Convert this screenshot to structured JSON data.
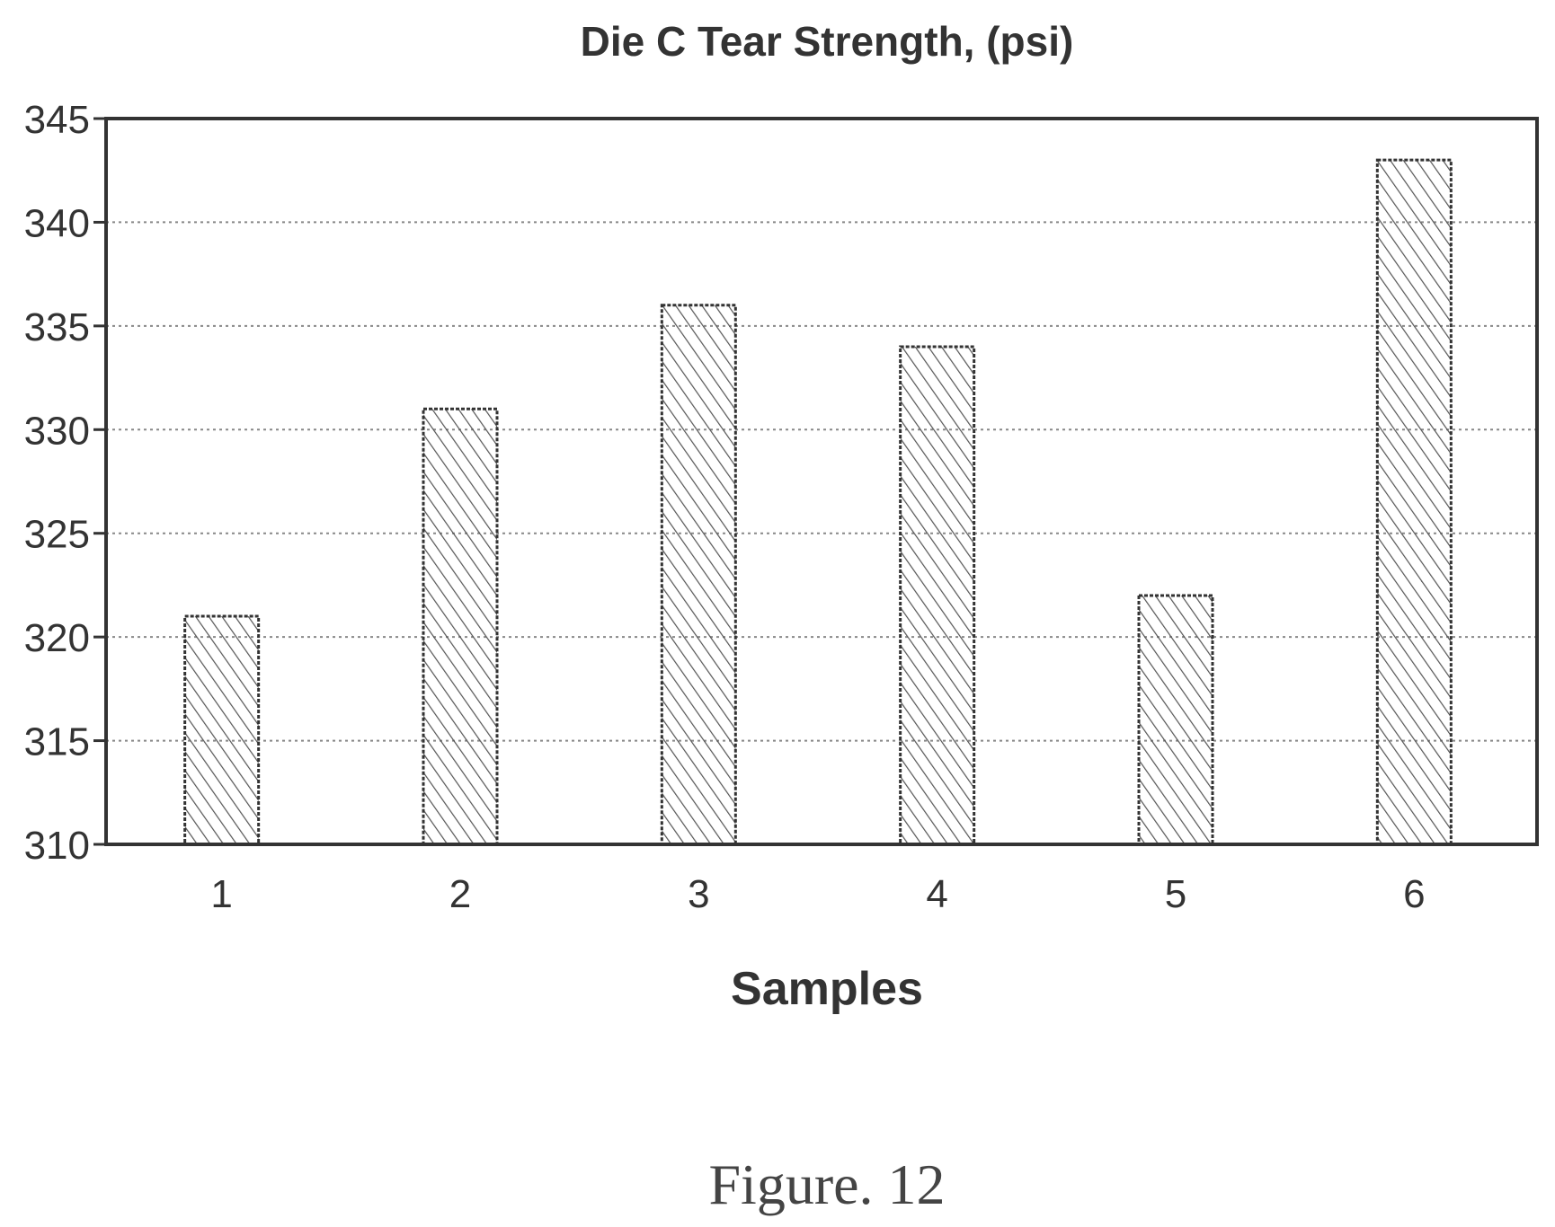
{
  "figure_caption": "Figure. 12",
  "colors": {
    "ink": "#333333",
    "grid": "#888888",
    "bar_fill": "#ffffff",
    "hatch": "#555555",
    "background": "#ffffff"
  },
  "chart_data": {
    "type": "bar",
    "title": "Die C Tear Strength, (psi)",
    "xlabel": "Samples",
    "ylabel": "",
    "categories": [
      "1",
      "2",
      "3",
      "4",
      "5",
      "6"
    ],
    "values": [
      321,
      331,
      336,
      334,
      322,
      343
    ],
    "ylim": [
      310,
      345
    ],
    "yticks": [
      310,
      315,
      320,
      325,
      330,
      335,
      340,
      345
    ],
    "ytick_labels": [
      "310",
      "315",
      "320",
      "325",
      "330",
      "335",
      "340",
      "345"
    ],
    "grid": true,
    "grid_style": "dotted",
    "legend": "none",
    "bar_pattern": "diagonal-hatch"
  }
}
